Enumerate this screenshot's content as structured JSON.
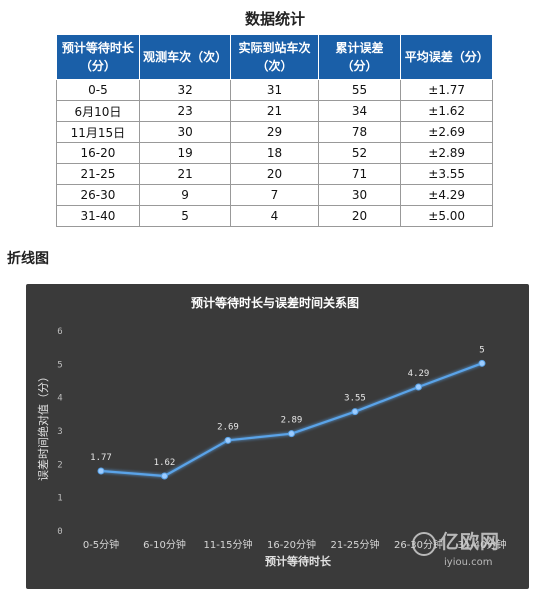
{
  "page": {
    "title": "数据统计",
    "chart_heading": "折线图"
  },
  "table": {
    "headers": [
      "预计等待时长（分）",
      "观测车次（次）",
      "实际到站车次（次）",
      "累计误差（分）",
      "平均误差（分）"
    ],
    "rows": [
      [
        "0-5",
        "32",
        "31",
        "55",
        "±1.77"
      ],
      [
        "6月10日",
        "23",
        "21",
        "34",
        "±1.62"
      ],
      [
        "11月15日",
        "30",
        "29",
        "78",
        "±2.69"
      ],
      [
        "16-20",
        "19",
        "18",
        "52",
        "±2.89"
      ],
      [
        "21-25",
        "21",
        "20",
        "71",
        "±3.55"
      ],
      [
        "26-30",
        "9",
        "7",
        "30",
        "±4.29"
      ],
      [
        "31-40",
        "5",
        "4",
        "20",
        "±5.00"
      ]
    ]
  },
  "chart_data": {
    "type": "line",
    "title": "预计等待时长与误差时间关系图",
    "xlabel": "预计等待时长",
    "ylabel": "误差时间绝对值（分）",
    "categories": [
      "0-5分钟",
      "6-10分钟",
      "11-15分钟",
      "16-20分钟",
      "21-25分钟",
      "26-30分钟",
      "31-40分钟"
    ],
    "series": [
      {
        "values": [
          1.77,
          1.62,
          2.69,
          2.89,
          3.55,
          4.29,
          5
        ],
        "labels": [
          "1.77",
          "1.62",
          "2.69",
          "2.89",
          "3.55",
          "4.29",
          "5"
        ]
      }
    ],
    "ylim": [
      0,
      6
    ],
    "yticks": [
      "0",
      "1",
      "2",
      "3",
      "4",
      "5",
      "6"
    ],
    "grid": false,
    "line_color": "#5aa3e8",
    "background": "#3a3a3a"
  },
  "watermark": {
    "logo": "亿欧网",
    "url": "iyiou.com"
  }
}
